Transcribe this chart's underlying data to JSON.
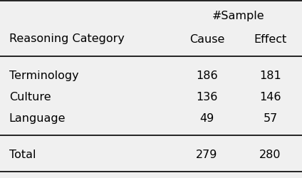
{
  "title_col1": "Reasoning Category",
  "title_group": "#Sample",
  "title_col2": "Cause",
  "title_col3": "Effect",
  "rows": [
    [
      "Terminology",
      "186",
      "181"
    ],
    [
      "Culture",
      "136",
      "146"
    ],
    [
      "Language",
      "49",
      "57"
    ]
  ],
  "total_row": [
    "Total",
    "279",
    "280"
  ],
  "bg_color": "#f0f0f0",
  "text_color": "#000000",
  "font_size": 11.5
}
